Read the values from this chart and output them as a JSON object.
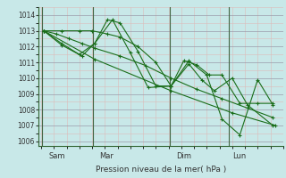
{
  "background_color": "#c8e8e8",
  "plot_bg_color": "#c8e8e8",
  "grid_color_major": "#9999aa",
  "grid_color_minor": "#ddbbb8",
  "line_color": "#1a6e1a",
  "marker_color": "#1a6e1a",
  "xlabel": "Pression niveau de la mer( hPa )",
  "ylim": [
    1005.7,
    1014.5
  ],
  "yticks": [
    1006,
    1007,
    1008,
    1009,
    1010,
    1011,
    1012,
    1013,
    1014
  ],
  "xlim": [
    -0.1,
    9.5
  ],
  "xtick_labels": [
    "Sam",
    "Mar",
    "Dim",
    "Lun"
  ],
  "xtick_positions": [
    0.3,
    2.3,
    5.3,
    7.5
  ],
  "vlines": [
    0.05,
    2.05,
    5.05,
    7.35
  ],
  "series": [
    {
      "x": [
        0.1,
        0.6,
        1.1,
        1.6,
        2.1,
        3.1,
        4.1,
        5.1,
        6.1,
        7.1,
        8.1,
        9.1
      ],
      "y": [
        1013.0,
        1012.8,
        1012.5,
        1012.2,
        1011.9,
        1011.4,
        1010.8,
        1010.0,
        1009.3,
        1008.7,
        1008.1,
        1007.5
      ]
    },
    {
      "x": [
        0.1,
        0.8,
        1.6,
        2.1,
        2.8,
        3.5,
        4.2,
        5.1,
        5.8,
        6.5,
        7.1,
        7.8,
        8.5,
        9.1
      ],
      "y": [
        1013.0,
        1012.1,
        1011.4,
        1012.2,
        1013.7,
        1011.6,
        1009.4,
        1009.5,
        1011.1,
        1010.2,
        1007.4,
        1006.4,
        1009.9,
        1008.3
      ]
    },
    {
      "x": [
        0.1,
        2.1,
        5.1,
        7.5,
        9.2
      ],
      "y": [
        1013.0,
        1011.2,
        1009.2,
        1007.8,
        1007.0
      ]
    },
    {
      "x": [
        0.1,
        0.8,
        1.5,
        2.1,
        2.6,
        3.1,
        3.8,
        4.5,
        5.1,
        5.6,
        6.1,
        6.6,
        7.1,
        7.8,
        8.5,
        9.1
      ],
      "y": [
        1013.0,
        1012.2,
        1011.5,
        1012.2,
        1013.7,
        1013.5,
        1011.7,
        1009.5,
        1009.5,
        1011.1,
        1010.85,
        1010.2,
        1010.2,
        1008.4,
        1008.4,
        1008.4
      ]
    },
    {
      "x": [
        0.1,
        0.8,
        1.5,
        2.0,
        2.6,
        3.1,
        3.8,
        4.5,
        5.1,
        5.8,
        6.3,
        6.8,
        7.5,
        8.1,
        9.1
      ],
      "y": [
        1013.0,
        1013.0,
        1013.0,
        1013.0,
        1012.8,
        1012.6,
        1012.0,
        1011.0,
        1009.5,
        1010.9,
        1009.9,
        1009.2,
        1010.0,
        1008.3,
        1007.0
      ]
    }
  ]
}
